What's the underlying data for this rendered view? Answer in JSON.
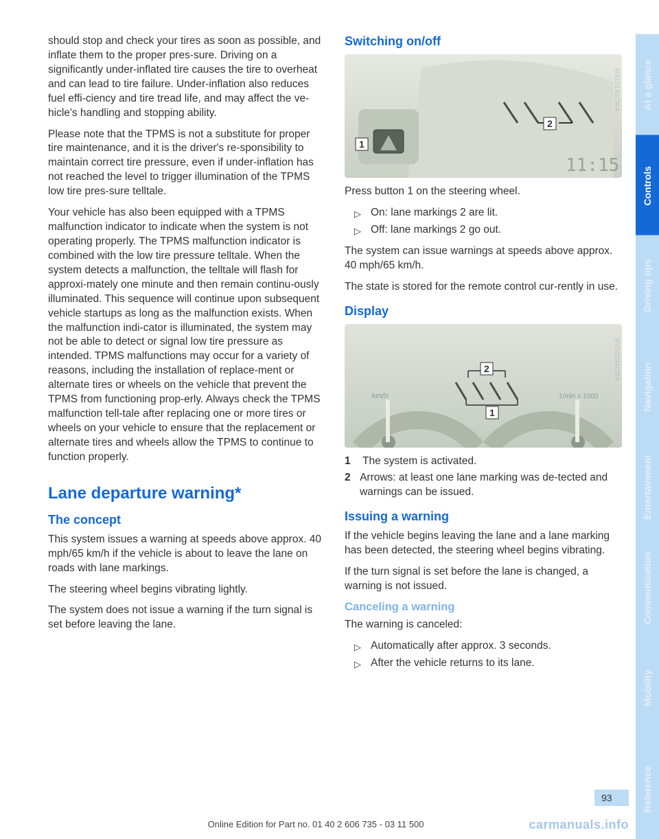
{
  "left": {
    "p1": "should stop and check your tires as soon as possible, and inflate them to the proper pres‐sure. Driving on a significantly under-inflated tire causes the tire to overheat and can lead to tire failure. Under-inflation also reduces fuel effi‐ciency and tire tread life, and may affect the ve‐hicle's handling and stopping ability.",
    "p2": "Please note that the TPMS is not a substitute for proper tire maintenance, and it is the driver's re‐sponsibility to maintain correct tire pressure, even if under-inflation has not reached the level to trigger illumination of the TPMS low tire pres‐sure telltale.",
    "p3": "Your vehicle has also been equipped with a TPMS malfunction indicator to indicate when the system is not operating properly. The TPMS malfunction indicator is combined with the low tire pressure telltale. When the system detects a malfunction, the telltale will flash for approxi‐mately one minute and then remain continu‐ously illuminated. This sequence will continue upon subsequent vehicle startups as long as the malfunction exists. When the malfunction indi‐cator is illuminated, the system may not be able to detect or signal low tire pressure as intended. TPMS malfunctions may occur for a variety of reasons, including the installation of replace‐ment or alternate tires or wheels on the vehicle that prevent the TPMS from functioning prop‐erly. Always check the TPMS malfunction tell‐tale after replacing one or more tires or wheels on your vehicle to ensure that the replacement or alternate tires and wheels allow the TPMS to continue to function properly.",
    "h2": "Lane departure warning*",
    "h3_concept": "The concept",
    "concept_p1": "This system issues a warning at speeds above approx. 40 mph/65 km/h if the vehicle is about to leave the lane on roads with lane markings.",
    "concept_p2": "The steering wheel begins vibrating lightly.",
    "concept_p3": "The system does not issue a warning if the turn signal is set before leaving the lane."
  },
  "right": {
    "h3_switch": "Switching on/off",
    "fig1_code": "MV10145CMA",
    "switch_p1": "Press button 1 on the steering wheel.",
    "switch_b1": "On: lane markings 2 are lit.",
    "switch_b2": "Off: lane markings 2 go out.",
    "switch_p2": "The system can issue warnings at speeds above approx. 40 mph/65 km/h.",
    "switch_p3": "The state is stored for the remote control cur‐rently in use.",
    "h3_display": "Display",
    "fig2_code": "MV10144CMA",
    "fig2_left_label": "km/h",
    "fig2_right_label": "1/min x 1000",
    "disp_n1": "1",
    "disp_t1": "The system is activated.",
    "disp_n2": "2",
    "disp_t2": "Arrows: at least one lane marking was de‐tected and warnings can be issued.",
    "h3_issue": "Issuing a warning",
    "issue_p1": "If the vehicle begins leaving the lane and a lane marking has been detected, the steering wheel begins vibrating.",
    "issue_p2": "If the turn signal is set before the lane is changed, a warning is not issued.",
    "h4_cancel": "Canceling a warning",
    "cancel_p1": "The warning is canceled:",
    "cancel_b1": "Automatically after approx. 3 seconds.",
    "cancel_b2": "After the vehicle returns to its lane."
  },
  "tabs": [
    {
      "label": "At a glance",
      "bg": "#bcdcf6",
      "faded": true
    },
    {
      "label": "Controls",
      "bg": "#1569d6",
      "faded": false
    },
    {
      "label": "Driving tips",
      "bg": "#bcdcf6",
      "faded": true
    },
    {
      "label": "Navigation",
      "bg": "#bcdcf6",
      "faded": true
    },
    {
      "label": "Entertainment",
      "bg": "#bcdcf6",
      "faded": true
    },
    {
      "label": "Communication",
      "bg": "#bcdcf6",
      "faded": true
    },
    {
      "label": "Mobility",
      "bg": "#bcdcf6",
      "faded": true
    },
    {
      "label": "Reference",
      "bg": "#bcdcf6",
      "faded": true
    }
  ],
  "tab_colors": {
    "active_bg": "#1569d6",
    "inactive_bg": "#bcdcf6"
  },
  "page_number": "93",
  "footer": "Online Edition for Part no. 01 40 2 606 735 - 03 11 500",
  "watermark": "carmanuals.info",
  "figure1": {
    "bg_top": "#e6e9e2",
    "bg_bottom": "#c9d0c4",
    "button_label": "1",
    "marks_label": "2",
    "clock": "11:15"
  },
  "figure2": {
    "bg_top": "#dfe3dc",
    "bg_bottom": "#c4ccc1",
    "label1": "1",
    "label2": "2"
  }
}
